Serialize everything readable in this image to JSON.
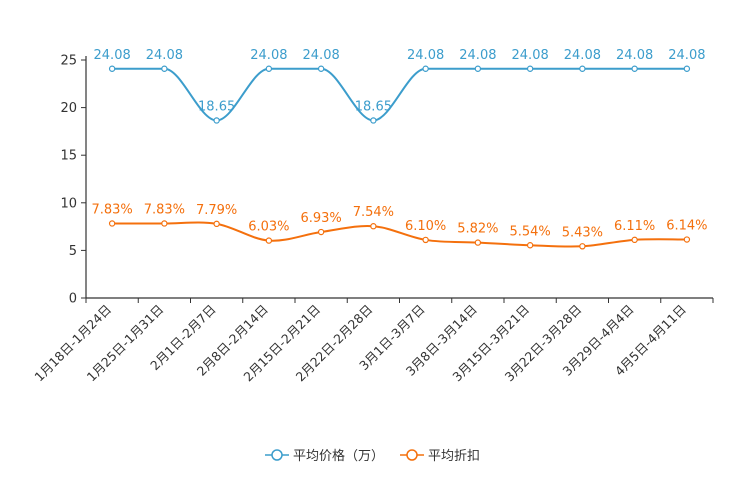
{
  "chart_data": {
    "type": "line",
    "categories": [
      "1月18日-1月24日",
      "1月25日-1月31日",
      "2月1日-2月7日",
      "2月8日-2月14日",
      "2月15日-2月21日",
      "2月22日-2月28日",
      "3月1日-3月7日",
      "3月8日-3月14日",
      "3月15日-3月21日",
      "3月22日-3月28日",
      "3月29日-4月4日",
      "4月5日-4月11日"
    ],
    "ylim": [
      0,
      25
    ],
    "yticks": [
      0,
      5,
      10,
      15,
      20,
      25
    ],
    "series": [
      {
        "name": "平均价格（万）",
        "color": "#3c9dcc",
        "values": [
          24.08,
          24.08,
          18.65,
          24.08,
          24.08,
          18.65,
          24.08,
          24.08,
          24.08,
          24.08,
          24.08,
          24.08
        ],
        "labels": [
          "24.08",
          "24.08",
          "18.65",
          "24.08",
          "24.08",
          "18.65",
          "24.08",
          "24.08",
          "24.08",
          "24.08",
          "24.08",
          "24.08"
        ]
      },
      {
        "name": "平均折扣",
        "color": "#f4700d",
        "values": [
          7.83,
          7.83,
          7.79,
          6.03,
          6.93,
          7.54,
          6.1,
          5.82,
          5.54,
          5.43,
          6.11,
          6.14
        ],
        "labels": [
          "7.83%",
          "7.83%",
          "7.79%",
          "6.03%",
          "6.93%",
          "7.54%",
          "6.10%",
          "5.82%",
          "5.54%",
          "5.43%",
          "6.11%",
          "6.14%"
        ]
      }
    ],
    "legend_position": "bottom-center"
  }
}
